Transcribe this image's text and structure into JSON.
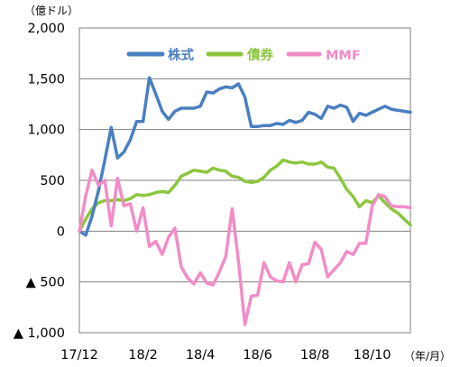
{
  "chart_data": {
    "type": "line",
    "y_unit": "（億ドル）",
    "x_unit": "（年/月）",
    "ylim": [
      -1000,
      2000
    ],
    "y_ticks": [
      2000,
      1500,
      1000,
      500,
      0,
      -500,
      -1000
    ],
    "y_tick_labels": [
      "2,000",
      "1,500",
      "1,000",
      "500",
      "0",
      "▲ 500",
      "▲ 1,000"
    ],
    "x_tick_labels": [
      "17/12",
      "18/2",
      "18/4",
      "18/6",
      "18/8",
      "18/10"
    ],
    "x_count": 53,
    "x_tick_indices": [
      0,
      10,
      19,
      28,
      37,
      46
    ],
    "grid": true,
    "legend_position": "top-right",
    "series": [
      {
        "name": "株式",
        "color": "#4a7fc1",
        "values": [
          0,
          -40,
          150,
          400,
          700,
          1020,
          720,
          780,
          900,
          1080,
          1080,
          1510,
          1350,
          1180,
          1100,
          1180,
          1210,
          1210,
          1210,
          1230,
          1370,
          1360,
          1400,
          1420,
          1410,
          1450,
          1320,
          1030,
          1030,
          1040,
          1040,
          1060,
          1050,
          1090,
          1070,
          1090,
          1170,
          1150,
          1110,
          1230,
          1210,
          1240,
          1220,
          1080,
          1160,
          1140,
          1170,
          1200,
          1230,
          1200,
          1190,
          1180,
          1170
        ]
      },
      {
        "name": "債券",
        "color": "#8cc63e",
        "values": [
          0,
          120,
          220,
          280,
          300,
          300,
          310,
          300,
          320,
          360,
          350,
          360,
          380,
          390,
          380,
          450,
          540,
          570,
          600,
          590,
          580,
          620,
          600,
          590,
          540,
          530,
          490,
          480,
          490,
          530,
          600,
          640,
          700,
          680,
          670,
          680,
          660,
          660,
          680,
          630,
          620,
          520,
          410,
          340,
          240,
          300,
          280,
          350,
          280,
          220,
          180,
          120,
          60
        ]
      },
      {
        "name": "MMF",
        "color": "#f28cc7",
        "values": [
          0,
          350,
          600,
          450,
          500,
          50,
          520,
          250,
          270,
          0,
          230,
          -150,
          -100,
          -230,
          -60,
          30,
          -350,
          -460,
          -520,
          -410,
          -510,
          -530,
          -400,
          -250,
          220,
          -300,
          -920,
          -640,
          -630,
          -310,
          -450,
          -490,
          -500,
          -310,
          -500,
          -330,
          -320,
          -110,
          -180,
          -450,
          -380,
          -310,
          -200,
          -230,
          -120,
          -120,
          250,
          360,
          340,
          250,
          240,
          240,
          230
        ]
      }
    ]
  }
}
